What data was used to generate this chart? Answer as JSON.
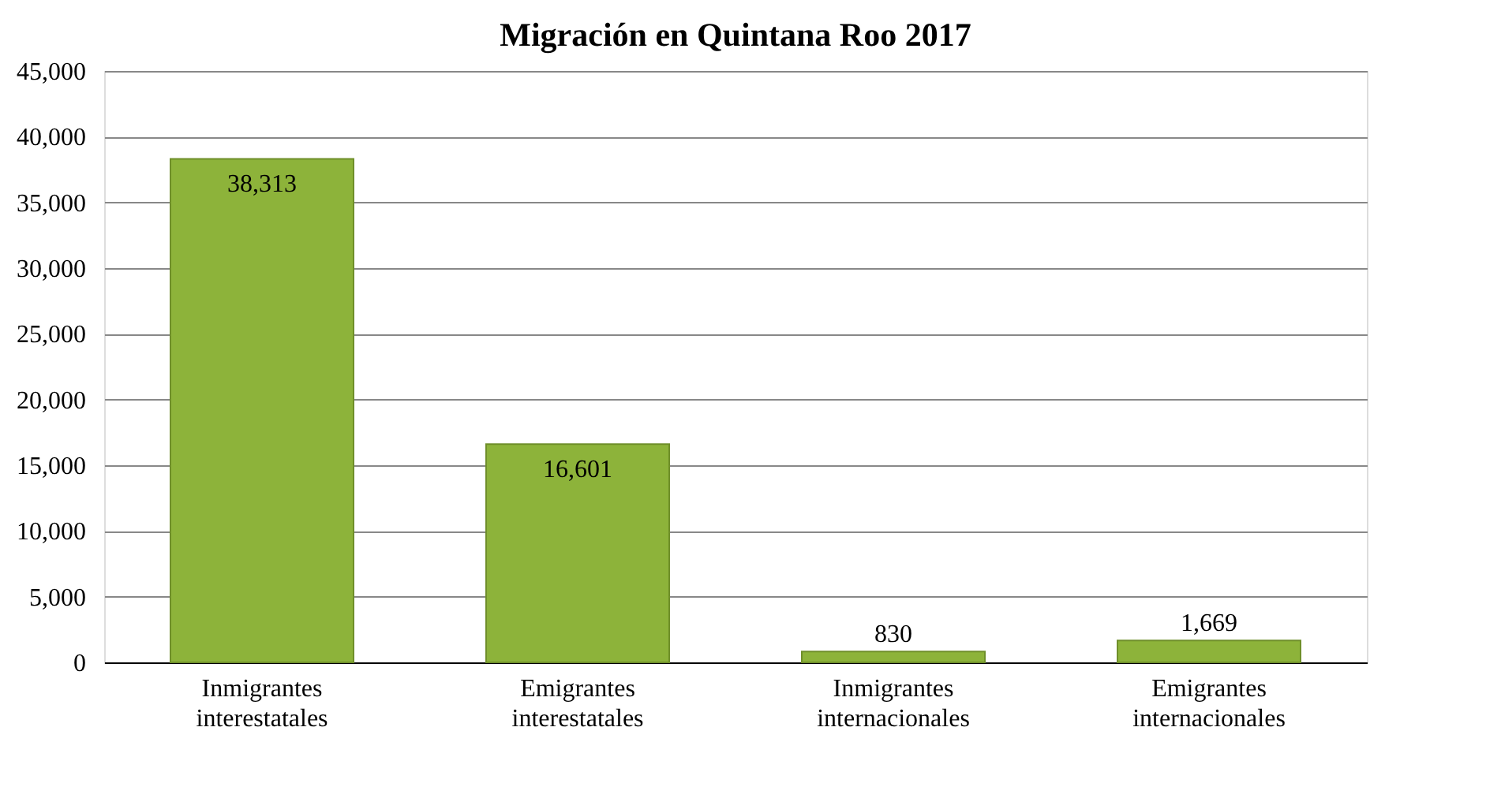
{
  "chart_data": {
    "type": "bar",
    "title": "Migración en Quintana Roo 2017",
    "categories": [
      "Inmigrantes interestatales",
      "Emigrantes interestatales",
      "Inmigrantes internacionales",
      "Emigrantes internacionales"
    ],
    "values": [
      38313,
      16601,
      830,
      1669
    ],
    "value_labels": [
      "38,313",
      "16,601",
      "830",
      "1,669"
    ],
    "color": "#8db33a",
    "ylim": [
      0,
      45000
    ],
    "yticks": [
      0,
      {
        "value": 5000,
        "label": "5,000"
      },
      {
        "value": 10000,
        "label": "10,000"
      },
      {
        "value": 15000,
        "label": "15,000"
      },
      {
        "value": 20000,
        "label": "20,000"
      },
      {
        "value": 25000,
        "label": "25,000"
      },
      {
        "value": 30000,
        "label": "30,000"
      },
      {
        "value": 35000,
        "label": "35,000"
      },
      {
        "value": 40000,
        "label": "40,000"
      },
      {
        "value": 45000,
        "label": "45,000"
      }
    ],
    "grid": "y"
  }
}
